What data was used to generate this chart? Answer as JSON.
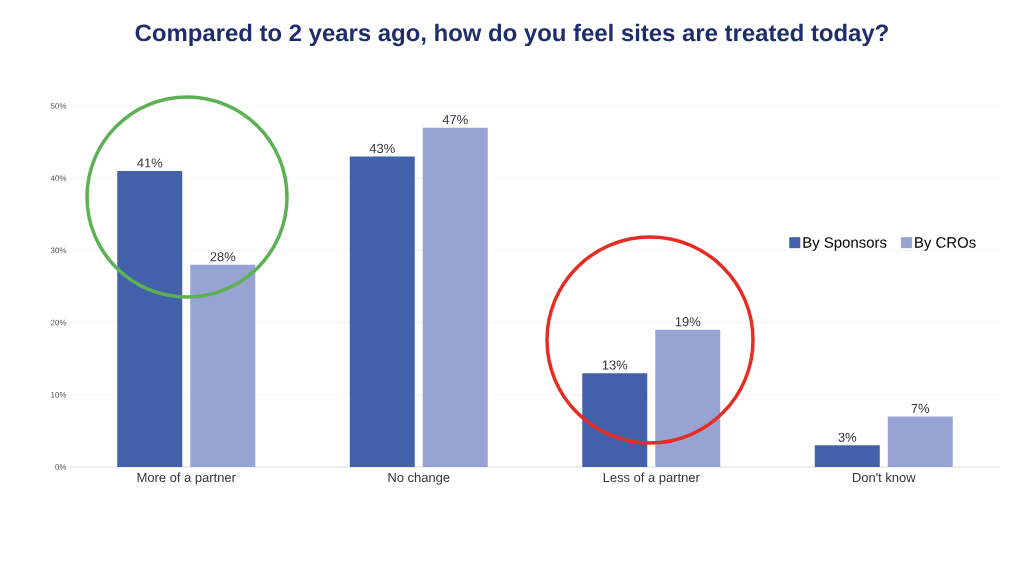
{
  "chart_data": {
    "type": "bar",
    "title": "Compared to 2 years ago, how do you feel sites are treated today?",
    "categories": [
      "More of a partner",
      "No change",
      "Less of a partner",
      "Don't know"
    ],
    "series": [
      {
        "name": "By Sponsors",
        "color": "#4361ab",
        "values": [
          41,
          43,
          13,
          3
        ],
        "value_labels": [
          "41%",
          "43%",
          "13%",
          "3%"
        ]
      },
      {
        "name": "By CROs",
        "color": "#97a3d3",
        "values": [
          28,
          47,
          19,
          7
        ],
        "value_labels": [
          "28%",
          "47%",
          "19%",
          "7%"
        ]
      }
    ],
    "ylim": [
      0,
      50
    ],
    "yticks": [
      {
        "value": 0,
        "label": "0%"
      },
      {
        "value": 10,
        "label": "10%"
      },
      {
        "value": 20,
        "label": "20%"
      },
      {
        "value": 30,
        "label": "30%"
      },
      {
        "value": 40,
        "label": "40%"
      },
      {
        "value": 50,
        "label": "50%"
      }
    ],
    "grid": "y",
    "legend": "right"
  }
}
